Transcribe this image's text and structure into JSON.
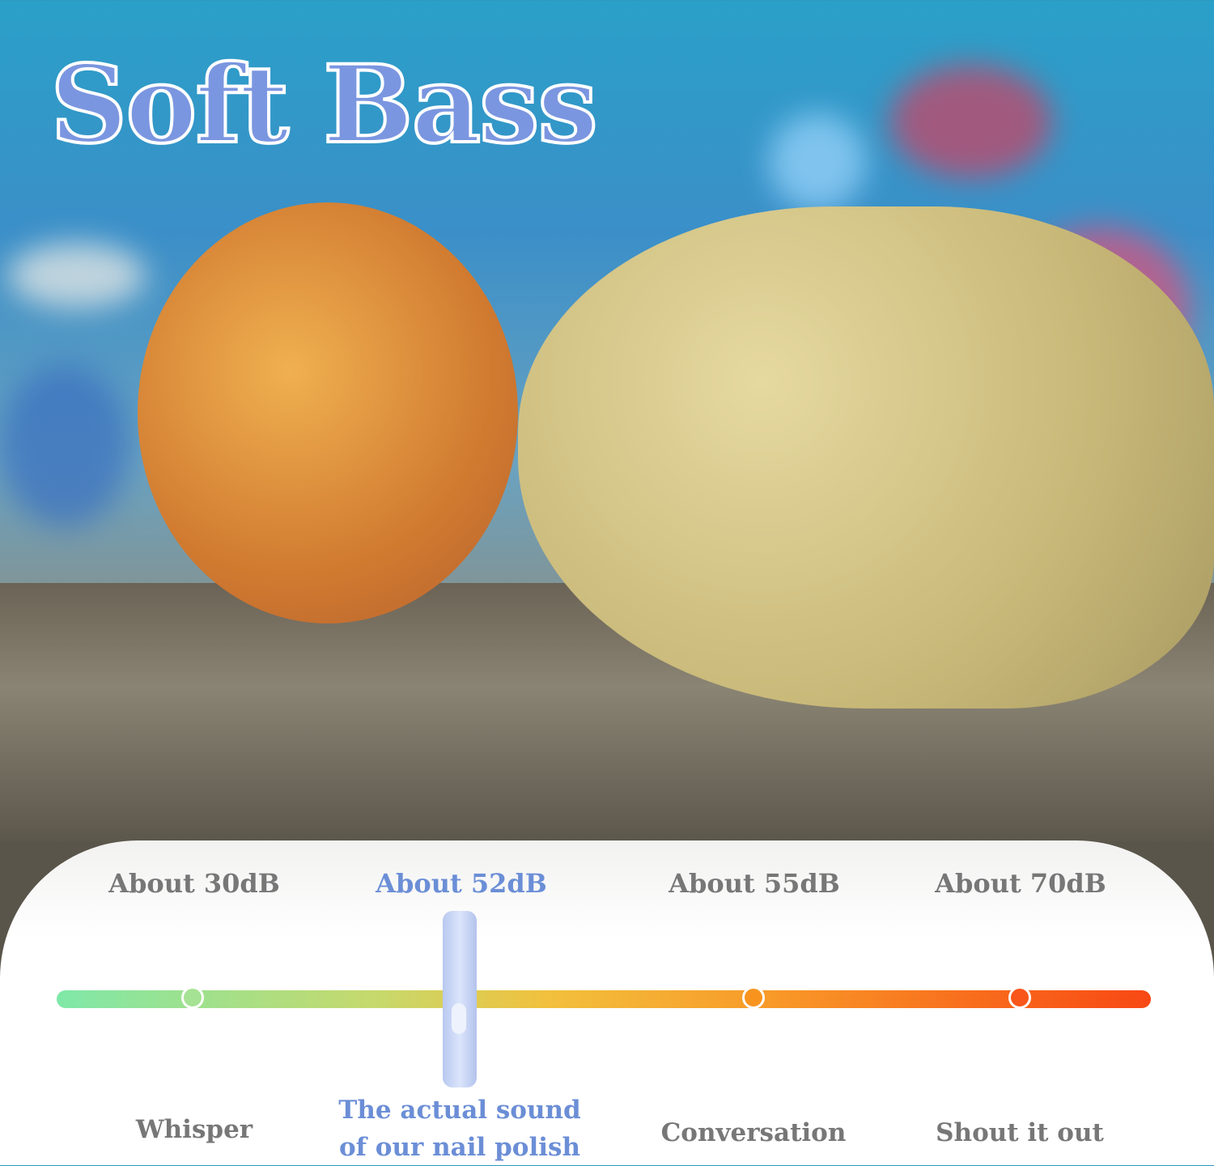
{
  "title": "Soft Bass",
  "scale": {
    "levels": [
      {
        "db_label": "About 30dB",
        "description": "Whisper",
        "highlight": false,
        "color": "#9fe29c"
      },
      {
        "db_label": "About 52dB",
        "description": "The actual sound of our nail polish",
        "description_lines": [
          "The actual sound",
          "of our nail polish"
        ],
        "highlight": true,
        "color": "#6b8ed6"
      },
      {
        "db_label": "About 55dB",
        "description": "Conversation",
        "highlight": false,
        "color": "#f8941e"
      },
      {
        "db_label": "About 70dB",
        "description": "Shout it out",
        "highlight": false,
        "color": "#f8561a"
      }
    ],
    "gradient_colors": [
      "#7fe8a8",
      "#f2c03c",
      "#f84814"
    ]
  }
}
